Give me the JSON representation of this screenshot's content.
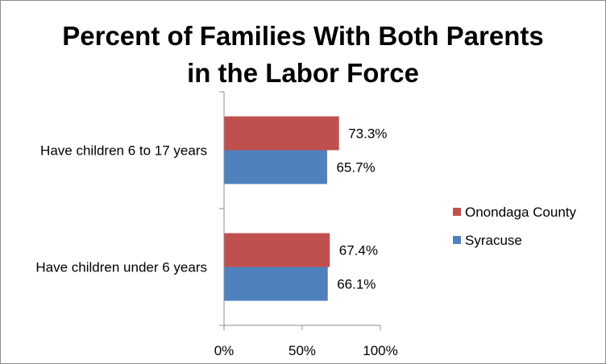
{
  "chart_data": {
    "type": "bar",
    "orientation": "horizontal",
    "title": "Percent of Families With Both Parents\nin the Labor Force",
    "categories": [
      "Have children 6 to 17 years",
      "Have children under 6 years"
    ],
    "series": [
      {
        "name": "Onondaga County",
        "color": "#C0504D",
        "values": [
          73.3,
          67.4
        ],
        "labels": [
          "73.3%",
          "67.4%"
        ]
      },
      {
        "name": "Syracuse",
        "color": "#4F81BD",
        "values": [
          65.7,
          66.1
        ],
        "labels": [
          "65.7%",
          "66.1%"
        ]
      }
    ],
    "xlim": [
      0,
      100
    ],
    "x_ticks": [
      0,
      50,
      100
    ],
    "x_tick_labels": [
      "0%",
      "50%",
      "100%"
    ],
    "grid": false,
    "legend_position": "right",
    "xlabel": "",
    "ylabel": ""
  }
}
